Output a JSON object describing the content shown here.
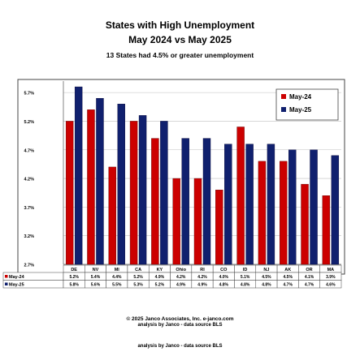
{
  "title": "States with High Unemployment",
  "subtitle": "May 2024 vs May 2025",
  "note": "13 States had 4.5% or greater unemployment",
  "footer": {
    "copyright": "© 2025 Janco Associates, Inc. e-janco.com",
    "analysis": "analysis by Janco - data source BLS",
    "analysis_repeat": "analysis by Janco - data source BLS"
  },
  "colors": {
    "may24": "#cc0000",
    "may25": "#10206e",
    "background": "#ffffff",
    "grid": "#bfbfbf"
  },
  "chart_data": {
    "type": "bar",
    "categories": [
      "DE",
      "NV",
      "MI",
      "CA",
      "KY",
      "Ohio",
      "RI",
      "CO",
      "ID",
      "NJ",
      "AK",
      "OR",
      "MA"
    ],
    "series": [
      {
        "name": "May-24",
        "values": [
          5.2,
          5.4,
          4.4,
          5.2,
          4.9,
          4.2,
          4.2,
          4.0,
          5.1,
          4.5,
          4.5,
          4.1,
          3.9
        ],
        "labels": [
          "5.2%",
          "5.4%",
          "4.4%",
          "5.2%",
          "4.9%",
          "4.2%",
          "4.2%",
          "4.0%",
          "5.1%",
          "4.5%",
          "4.5%",
          "4.1%",
          "3.9%"
        ]
      },
      {
        "name": "May-25",
        "values": [
          5.8,
          5.6,
          5.5,
          5.3,
          5.2,
          4.9,
          4.9,
          4.8,
          4.8,
          4.8,
          4.7,
          4.7,
          4.6
        ],
        "labels": [
          "5.8%",
          "5.6%",
          "5.5%",
          "5.3%",
          "5.2%",
          "4.9%",
          "4.9%",
          "4.8%",
          "4.8%",
          "4.8%",
          "4.7%",
          "4.7%",
          "4.6%"
        ]
      }
    ],
    "yticks": [
      2.7,
      3.2,
      3.7,
      4.2,
      4.7,
      5.2,
      5.7
    ],
    "ytick_labels": [
      "2.7%",
      "3.2%",
      "3.7%",
      "4.2%",
      "4.7%",
      "5.2%",
      "5.7%"
    ],
    "ylim": [
      2.7,
      5.9
    ],
    "xlabel": "",
    "ylabel": "",
    "legend_position": "top-right",
    "grid": true,
    "data_table": true
  }
}
